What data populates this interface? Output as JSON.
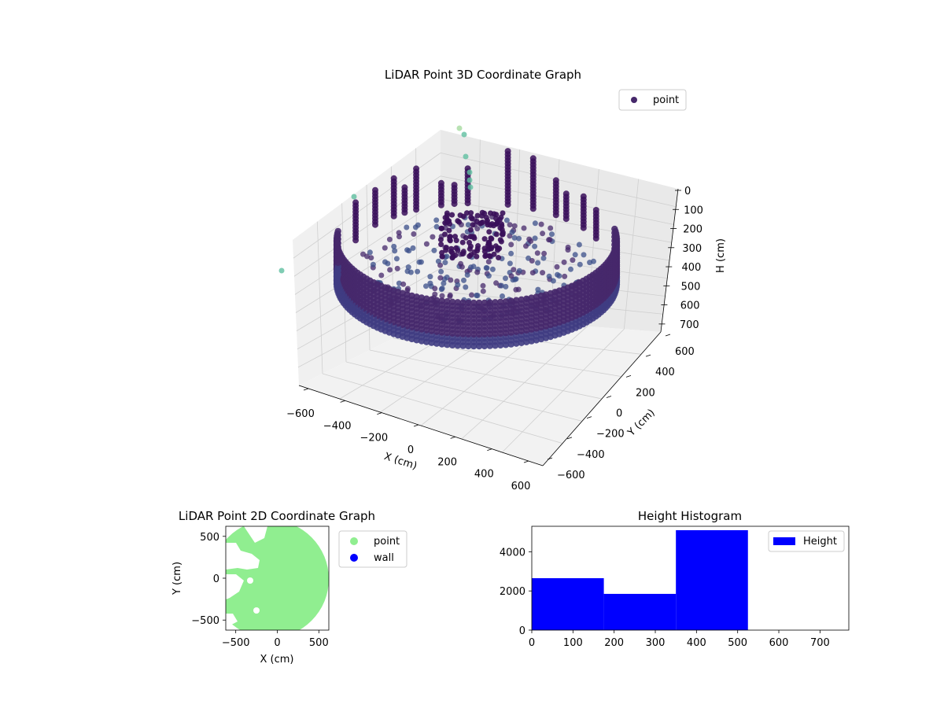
{
  "chart_data": [
    {
      "type": "scatter",
      "title": "LiDAR Point 3D Coordinate Graph",
      "xlabel": "X (cm)",
      "ylabel": "Y (cm)",
      "zlabel": "H (cm)",
      "x_ticks": [
        "−600",
        "−400",
        "−200",
        "0",
        "200",
        "400",
        "600"
      ],
      "y_ticks": [
        "600",
        "400",
        "200",
        "0",
        "−200",
        "−400",
        "−600"
      ],
      "z_ticks": [
        "0",
        "100",
        "200",
        "300",
        "400",
        "500",
        "600",
        "700"
      ],
      "xlim": [
        -600,
        600
      ],
      "ylim": [
        -600,
        600
      ],
      "zlim": [
        0,
        750
      ],
      "z_inverted": true,
      "legend": {
        "placement": "upper-right",
        "entries": [
          "point"
        ]
      },
      "colormap": "viridis",
      "colors": {
        "wall": "#46286b",
        "floor": "#3b4f8a",
        "core": "#3a0f5a",
        "outlier": "#5fbfa0"
      },
      "grid": true,
      "series": [
        {
          "name": "point",
          "shape": "ring of wall points with inner floor points and scattered outliers"
        }
      ]
    },
    {
      "type": "scatter",
      "title": "LiDAR Point 2D Coordinate Graph",
      "xlabel": "X (cm)",
      "ylabel": "Y (cm)",
      "x_ticks": [
        "−500",
        "0",
        "500"
      ],
      "y_ticks": [
        "500",
        "0",
        "−500"
      ],
      "xlim": [
        -620,
        620
      ],
      "ylim": [
        -620,
        620
      ],
      "legend": {
        "placement": "right",
        "entries": [
          "point",
          "wall"
        ]
      },
      "series": [
        {
          "name": "point",
          "color": "#90ee90"
        },
        {
          "name": "wall",
          "color": "#0000ff"
        }
      ]
    },
    {
      "type": "bar",
      "title": "Height Histogram",
      "x_ticks": [
        "0",
        "100",
        "200",
        "300",
        "400",
        "500",
        "600",
        "700"
      ],
      "y_ticks": [
        "0",
        "2000",
        "4000"
      ],
      "xlim": [
        0,
        770
      ],
      "ylim": [
        0,
        5300
      ],
      "bins": [
        {
          "from": 0,
          "to": 175,
          "count": 2650
        },
        {
          "from": 175,
          "to": 350,
          "count": 1850
        },
        {
          "from": 350,
          "to": 525,
          "count": 5100
        }
      ],
      "legend": {
        "placement": "upper-right",
        "entries": [
          "Height"
        ]
      },
      "color": "#0000ff"
    }
  ]
}
